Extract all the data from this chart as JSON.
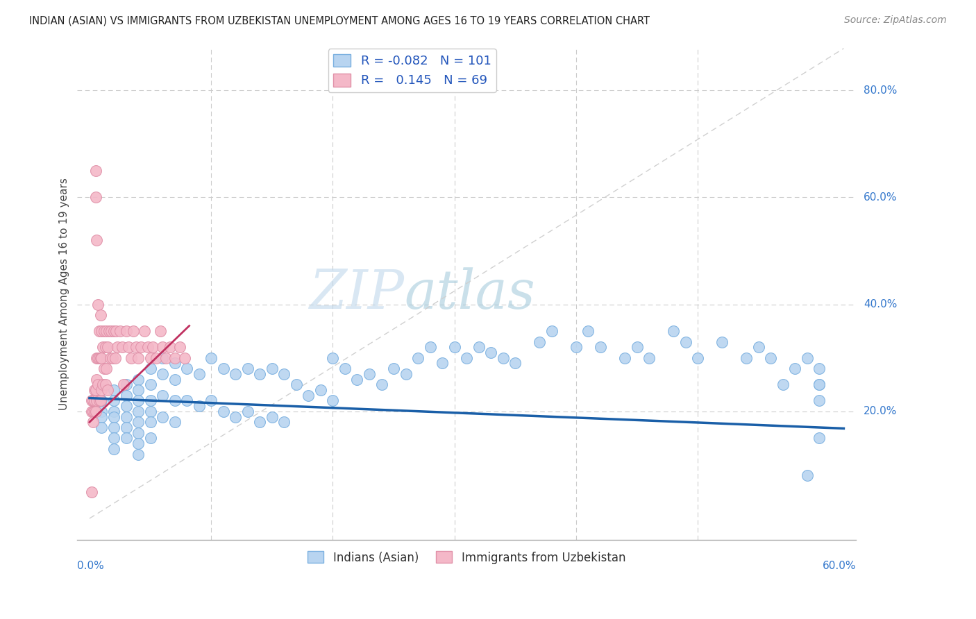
{
  "title": "INDIAN (ASIAN) VS IMMIGRANTS FROM UZBEKISTAN UNEMPLOYMENT AMONG AGES 16 TO 19 YEARS CORRELATION CHART",
  "source": "Source: ZipAtlas.com",
  "ylabel": "Unemployment Among Ages 16 to 19 years",
  "xlim_data": [
    0.0,
    0.6
  ],
  "ylim_data": [
    0.0,
    0.85
  ],
  "legend_blue_r": "-0.082",
  "legend_blue_n": "101",
  "legend_pink_r": "0.145",
  "legend_pink_n": "69",
  "legend_label_blue": "Indians (Asian)",
  "legend_label_pink": "Immigrants from Uzbekistan",
  "dot_color_blue": "#b8d4f0",
  "dot_edge_blue": "#7ab0e0",
  "dot_color_pink": "#f4b8c8",
  "dot_edge_pink": "#e090a8",
  "trend_color_blue": "#1a5fa8",
  "trend_color_pink": "#c03060",
  "grid_color": "#cccccc",
  "watermark_color": "#cde8f8",
  "blue_x": [
    0.01,
    0.01,
    0.01,
    0.01,
    0.02,
    0.02,
    0.02,
    0.02,
    0.02,
    0.02,
    0.02,
    0.03,
    0.03,
    0.03,
    0.03,
    0.03,
    0.03,
    0.04,
    0.04,
    0.04,
    0.04,
    0.04,
    0.04,
    0.04,
    0.04,
    0.05,
    0.05,
    0.05,
    0.05,
    0.05,
    0.05,
    0.06,
    0.06,
    0.06,
    0.06,
    0.07,
    0.07,
    0.07,
    0.07,
    0.08,
    0.08,
    0.09,
    0.09,
    0.1,
    0.1,
    0.11,
    0.11,
    0.12,
    0.12,
    0.13,
    0.13,
    0.14,
    0.14,
    0.15,
    0.15,
    0.16,
    0.16,
    0.17,
    0.18,
    0.19,
    0.2,
    0.2,
    0.21,
    0.22,
    0.23,
    0.24,
    0.25,
    0.26,
    0.27,
    0.28,
    0.29,
    0.3,
    0.31,
    0.32,
    0.33,
    0.34,
    0.35,
    0.37,
    0.38,
    0.4,
    0.41,
    0.42,
    0.44,
    0.45,
    0.46,
    0.48,
    0.49,
    0.5,
    0.52,
    0.54,
    0.55,
    0.56,
    0.57,
    0.58,
    0.59,
    0.59,
    0.6,
    0.6,
    0.6,
    0.6,
    0.6
  ],
  "blue_y": [
    0.22,
    0.2,
    0.19,
    0.17,
    0.24,
    0.22,
    0.2,
    0.19,
    0.17,
    0.15,
    0.13,
    0.25,
    0.23,
    0.21,
    0.19,
    0.17,
    0.15,
    0.26,
    0.24,
    0.22,
    0.2,
    0.18,
    0.16,
    0.14,
    0.12,
    0.28,
    0.25,
    0.22,
    0.2,
    0.18,
    0.15,
    0.3,
    0.27,
    0.23,
    0.19,
    0.29,
    0.26,
    0.22,
    0.18,
    0.28,
    0.22,
    0.27,
    0.21,
    0.3,
    0.22,
    0.28,
    0.2,
    0.27,
    0.19,
    0.28,
    0.2,
    0.27,
    0.18,
    0.28,
    0.19,
    0.27,
    0.18,
    0.25,
    0.23,
    0.24,
    0.3,
    0.22,
    0.28,
    0.26,
    0.27,
    0.25,
    0.28,
    0.27,
    0.3,
    0.32,
    0.29,
    0.32,
    0.3,
    0.32,
    0.31,
    0.3,
    0.29,
    0.33,
    0.35,
    0.32,
    0.35,
    0.32,
    0.3,
    0.32,
    0.3,
    0.35,
    0.33,
    0.3,
    0.33,
    0.3,
    0.32,
    0.3,
    0.25,
    0.28,
    0.3,
    0.08,
    0.25,
    0.22,
    0.28,
    0.25,
    0.15
  ],
  "pink_x": [
    0.002,
    0.002,
    0.002,
    0.003,
    0.003,
    0.003,
    0.004,
    0.004,
    0.004,
    0.005,
    0.005,
    0.005,
    0.005,
    0.006,
    0.006,
    0.006,
    0.006,
    0.007,
    0.007,
    0.007,
    0.008,
    0.008,
    0.008,
    0.009,
    0.009,
    0.009,
    0.01,
    0.01,
    0.01,
    0.011,
    0.011,
    0.012,
    0.012,
    0.013,
    0.013,
    0.014,
    0.014,
    0.015,
    0.015,
    0.016,
    0.017,
    0.018,
    0.019,
    0.02,
    0.021,
    0.022,
    0.023,
    0.025,
    0.027,
    0.028,
    0.03,
    0.032,
    0.034,
    0.036,
    0.038,
    0.04,
    0.042,
    0.045,
    0.048,
    0.05,
    0.052,
    0.055,
    0.058,
    0.06,
    0.063,
    0.066,
    0.07,
    0.074,
    0.078
  ],
  "pink_y": [
    0.22,
    0.2,
    0.05,
    0.22,
    0.2,
    0.18,
    0.24,
    0.22,
    0.2,
    0.65,
    0.6,
    0.24,
    0.2,
    0.52,
    0.3,
    0.26,
    0.22,
    0.4,
    0.3,
    0.25,
    0.35,
    0.3,
    0.22,
    0.38,
    0.3,
    0.22,
    0.35,
    0.3,
    0.24,
    0.32,
    0.25,
    0.35,
    0.28,
    0.32,
    0.25,
    0.35,
    0.28,
    0.32,
    0.24,
    0.35,
    0.3,
    0.35,
    0.3,
    0.35,
    0.3,
    0.35,
    0.32,
    0.35,
    0.32,
    0.25,
    0.35,
    0.32,
    0.3,
    0.35,
    0.32,
    0.3,
    0.32,
    0.35,
    0.32,
    0.3,
    0.32,
    0.3,
    0.35,
    0.32,
    0.3,
    0.32,
    0.3,
    0.32,
    0.3
  ]
}
